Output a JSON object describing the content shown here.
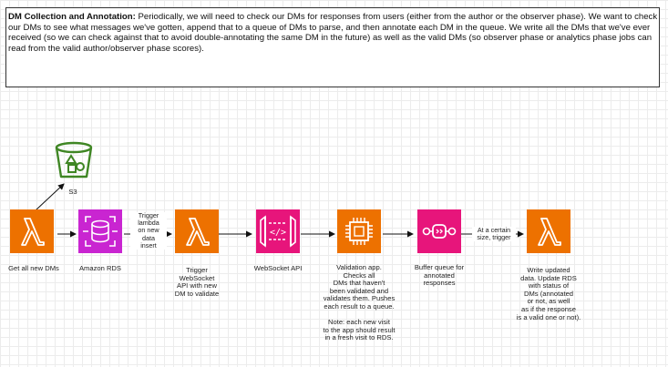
{
  "description": {
    "title": "DM Collection and Annotation:",
    "body": "Periodically, we will need to check our DMs for responses from users (either from the author or the observer phase). We want to check our DMs to see what messages we've gotten, append that to a queue of DMs to parse, and then annotate each DM in the queue. We write all the DMs that we've ever received (so we can check against that to avoid double-annotating the same DM in the future) as well as the valid DMs (so observer phase or analytics phase jobs can read from the valid author/observer phase scores)."
  },
  "nodes": {
    "s3": {
      "label": "S3",
      "icon": "s3-bucket-icon",
      "color": "#3f8624"
    },
    "lambda_get": {
      "label": "Get all new DMs",
      "icon": "lambda-icon",
      "color": "#ed7100"
    },
    "rds": {
      "label": "Amazon RDS",
      "icon": "rds-icon",
      "color": "#c925d1"
    },
    "lambda_trigger": {
      "label": "Trigger\nWebSocket\nAPI with new\nDM to validate",
      "icon": "lambda-icon",
      "color": "#ed7100"
    },
    "websocket": {
      "label": "WebSocket API",
      "icon": "api-gateway-websocket-icon",
      "color": "#e7157b"
    },
    "validation_app": {
      "label": "Validation app.\nChecks all\nDMs that haven't\nbeen validated and\nvalidates them. Pushes\neach result to a queue.\n\nNote: each new visit\nto the app should result\nin a fresh visit to RDS.",
      "icon": "ec2-instance-icon",
      "color": "#ed7100"
    },
    "buffer_queue": {
      "label": "Buffer queue for\nannotated\nresponses",
      "icon": "sqs-queue-icon",
      "color": "#e7157b"
    },
    "lambda_write": {
      "label": "Write updated\ndata. Update RDS\nwith status of\nDMs (annotated\nor not, as well\nas if the response\nis a valid one or not).",
      "icon": "lambda-icon",
      "color": "#ed7100"
    }
  },
  "edges": {
    "rds_to_trigger": "Trigger\nlambda\non new\ndata\ninsert",
    "queue_to_write": "At a certain\nsize, trigger"
  }
}
